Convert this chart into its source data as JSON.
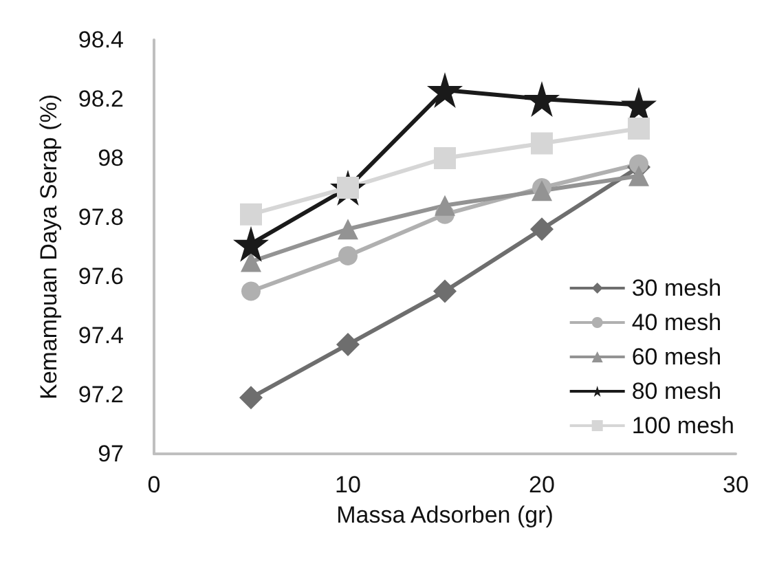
{
  "chart_data": {
    "type": "line",
    "xlabel": "Massa Adsorben (gr)",
    "ylabel": "Kemampuan Daya Serap (%)",
    "x": [
      5,
      10,
      15,
      20,
      25
    ],
    "xlim": [
      0,
      30
    ],
    "xticks": [
      0,
      10,
      20,
      30
    ],
    "ylim": [
      97,
      98.4
    ],
    "yticks": [
      97,
      97.2,
      97.4,
      97.6,
      97.8,
      98,
      98.2,
      98.4
    ],
    "grid": false,
    "legend": "bottom right",
    "series": [
      {
        "name": "30 mesh",
        "color": "#6e6e6e",
        "marker": "diamond",
        "values": [
          97.19,
          97.37,
          97.55,
          97.76,
          97.97
        ]
      },
      {
        "name": "40 mesh",
        "color": "#b0b0b0",
        "marker": "circle",
        "values": [
          97.55,
          97.67,
          97.81,
          97.9,
          97.98
        ]
      },
      {
        "name": "60 mesh",
        "color": "#939393",
        "marker": "triangle",
        "values": [
          97.65,
          97.76,
          97.84,
          97.89,
          97.94
        ]
      },
      {
        "name": "80 mesh",
        "color": "#1a1a1a",
        "marker": "star",
        "values": [
          97.71,
          97.9,
          98.23,
          98.2,
          98.18
        ]
      },
      {
        "name": "100 mesh",
        "color": "#d6d6d6",
        "marker": "square",
        "values": [
          97.81,
          97.9,
          98,
          98.05,
          98.1
        ]
      }
    ]
  }
}
